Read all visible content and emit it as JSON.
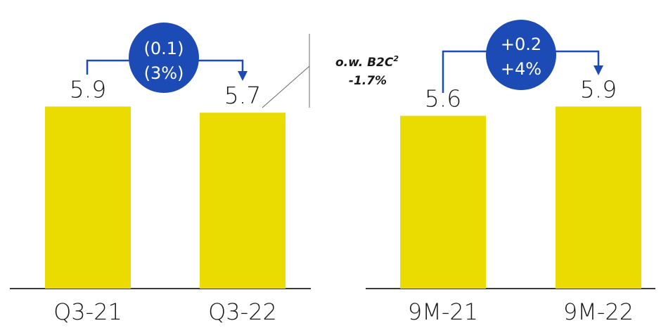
{
  "chart_data": [
    {
      "type": "bar",
      "categories": [
        "Q3-21",
        "Q3-22"
      ],
      "values": [
        5.9,
        5.7
      ],
      "value_labels": [
        "5.9",
        "5.7"
      ],
      "ylim": [
        0,
        6.5
      ],
      "grid": false,
      "bar_color": "#eadb00",
      "change": {
        "absolute": "(0.1)",
        "percent": "(3%)",
        "badge_color": "#1d4bb5"
      },
      "annotation": {
        "line1": "o.w. B2C",
        "line1_sup": "2",
        "line2": "-1.7%"
      }
    },
    {
      "type": "bar",
      "categories": [
        "9M-21",
        "9M-22"
      ],
      "values": [
        5.6,
        5.9
      ],
      "value_labels": [
        "5.6",
        "5.9"
      ],
      "ylim": [
        0,
        6.5
      ],
      "grid": false,
      "bar_color": "#eadb00",
      "change": {
        "absolute": "+0.2",
        "percent": "+4%",
        "badge_color": "#1d4bb5"
      }
    }
  ]
}
